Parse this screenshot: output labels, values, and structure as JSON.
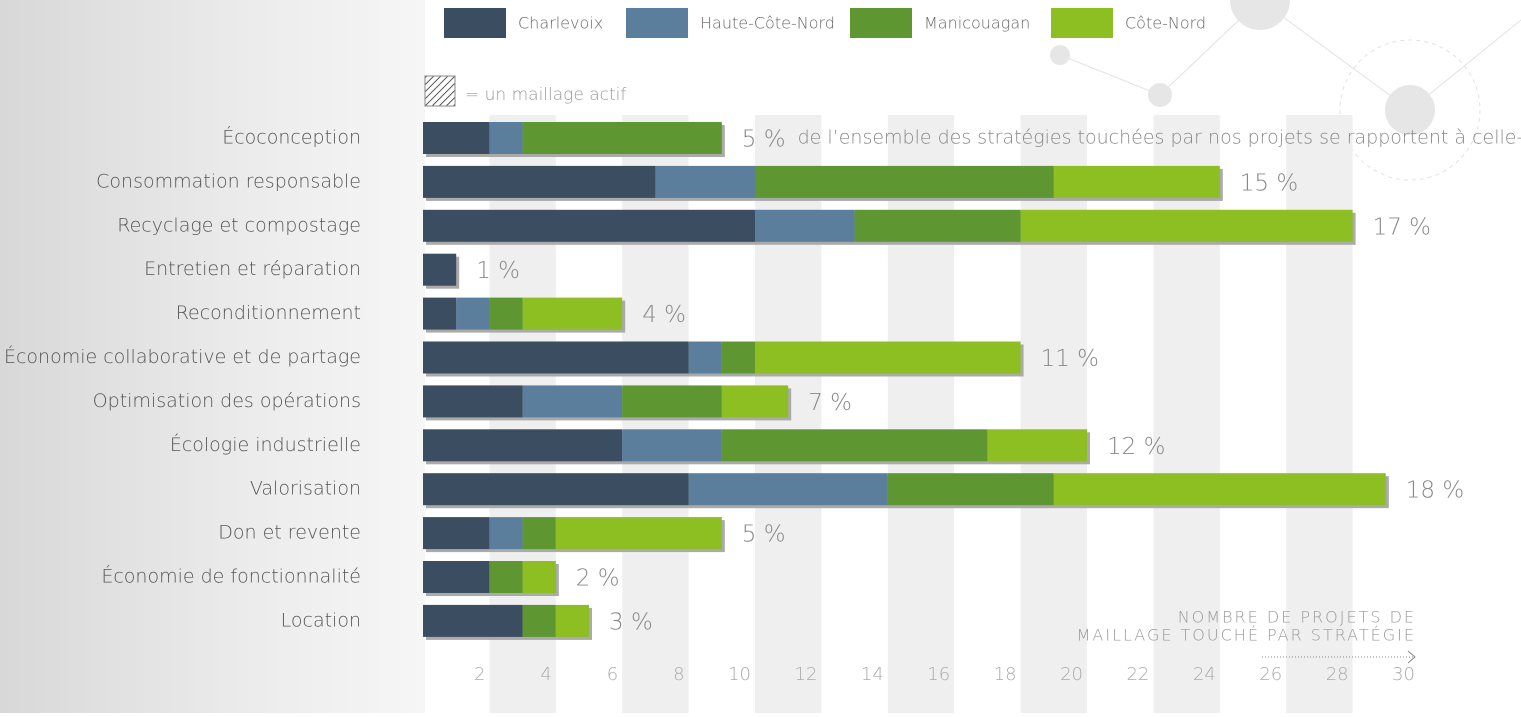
{
  "chart_data": {
    "type": "stacked-bar-horizontal",
    "categories": [
      "Écoconception",
      "Consommation responsable",
      "Recyclage et compostage",
      "Entretien et réparation",
      "Reconditionnement",
      "Économie collaborative et de partage",
      "Optimisation des opérations",
      "Écologie industrielle",
      "Valorisation",
      "Don et revente",
      "Économie de fonctionnalité",
      "Location"
    ],
    "series": [
      {
        "name": "Charlevoix",
        "color": "#3b4d61",
        "values": [
          2,
          7,
          10,
          1,
          1,
          8,
          3,
          6,
          8,
          2,
          2,
          3
        ]
      },
      {
        "name": "Haute-Côte-Nord",
        "color": "#5b7e9c",
        "values": [
          1,
          3,
          3,
          0,
          1,
          1,
          3,
          3,
          6,
          1,
          0,
          0
        ]
      },
      {
        "name": "Manicouagan",
        "color": "#5e9732",
        "values": [
          6,
          9,
          5,
          0,
          1,
          1,
          3,
          8,
          5,
          1,
          1,
          1
        ]
      },
      {
        "name": "Côte-Nord",
        "color": "#8dbf22",
        "values": [
          0,
          5,
          10,
          0,
          3,
          8,
          2,
          3,
          10,
          5,
          1,
          1
        ]
      }
    ],
    "percent_labels": [
      "5 %",
      "15 %",
      "17 %",
      "1 %",
      "4 %",
      "11 %",
      "7 %",
      "12 %",
      "18 %",
      "5 %",
      "2 %",
      "3 %"
    ],
    "annotation": "de l’ensemble des stratégies touchées par nos projets se rapportent à celle-ci",
    "hatch_note": "= un maillage actif",
    "x_label": [
      "NOMBRE DE PROJETS DE",
      "MAILLAGE TOUCHÉ PAR STRATÉGIE"
    ],
    "xlim": [
      0,
      30
    ],
    "xticks": [
      2,
      4,
      6,
      8,
      10,
      12,
      14,
      16,
      18,
      20,
      22,
      24,
      26,
      28,
      30
    ]
  }
}
